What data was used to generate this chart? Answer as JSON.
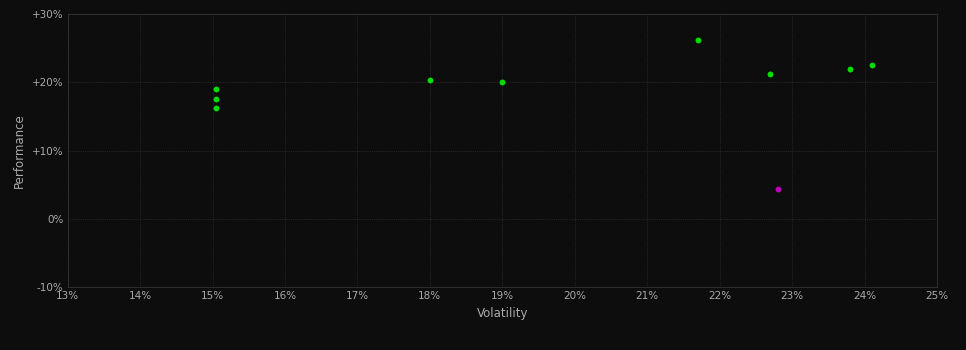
{
  "background_color": "#0d0d0d",
  "plot_bg_color": "#0d0d0d",
  "grid_color": "#3a3a3a",
  "text_color": "#aaaaaa",
  "xlabel": "Volatility",
  "ylabel": "Performance",
  "xlim": [
    0.13,
    0.25
  ],
  "ylim": [
    -0.1,
    0.3
  ],
  "xticks": [
    0.13,
    0.14,
    0.15,
    0.16,
    0.17,
    0.18,
    0.19,
    0.2,
    0.21,
    0.22,
    0.23,
    0.24,
    0.25
  ],
  "yticks": [
    -0.1,
    0.0,
    0.1,
    0.2,
    0.3
  ],
  "ytick_labels": [
    "-10%",
    "0%",
    "+10%",
    "+20%",
    "+30%"
  ],
  "xtick_labels": [
    "13%",
    "14%",
    "15%",
    "16%",
    "17%",
    "18%",
    "19%",
    "20%",
    "21%",
    "22%",
    "23%",
    "24%",
    "25%"
  ],
  "green_points": [
    [
      0.1505,
      0.19
    ],
    [
      0.1505,
      0.175
    ],
    [
      0.1505,
      0.163
    ],
    [
      0.18,
      0.204
    ],
    [
      0.19,
      0.2
    ],
    [
      0.217,
      0.262
    ],
    [
      0.227,
      0.212
    ],
    [
      0.238,
      0.219
    ],
    [
      0.241,
      0.225
    ]
  ],
  "magenta_points": [
    [
      0.228,
      0.044
    ]
  ],
  "green_color": "#00dd00",
  "magenta_color": "#bb00bb",
  "marker_size": 18
}
